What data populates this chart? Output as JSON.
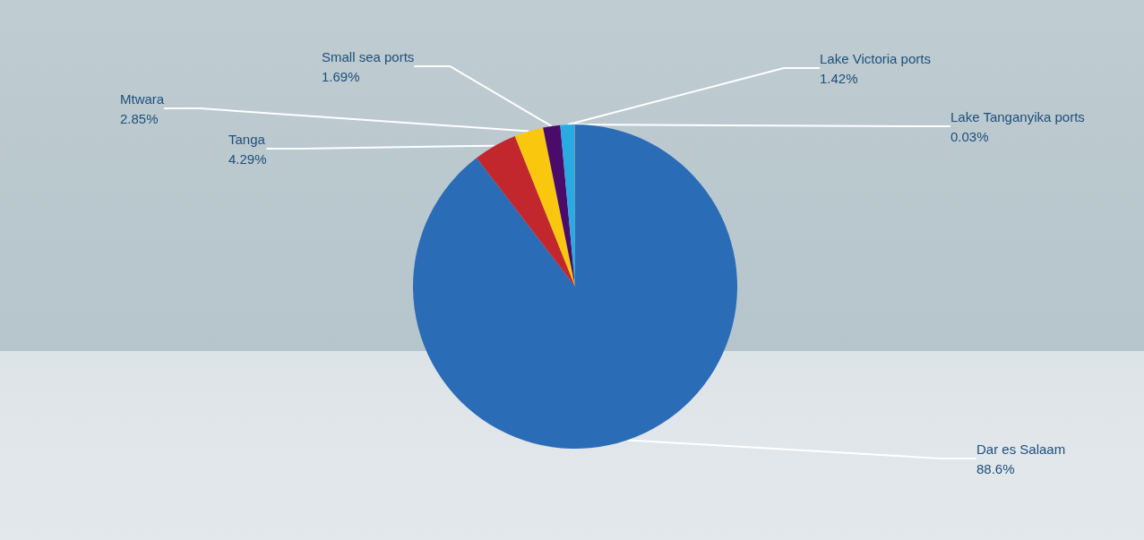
{
  "chart_data": {
    "type": "pie",
    "categories": [
      "Dar es Salaam",
      "Tanga",
      "Mtwara",
      "Small sea ports",
      "Lake Victoria ports",
      "Lake Tanganyika ports"
    ],
    "values": [
      88.6,
      4.29,
      2.85,
      1.69,
      1.42,
      0.03
    ],
    "value_labels": [
      "88.6%",
      "4.29%",
      "2.85%",
      "1.69%",
      "1.42%",
      "0.03%"
    ],
    "colors": [
      "#2b6cb6",
      "#c1272d",
      "#f9c80e",
      "#4b0b6b",
      "#29abe2",
      "#f15a24"
    ],
    "legend": false
  }
}
